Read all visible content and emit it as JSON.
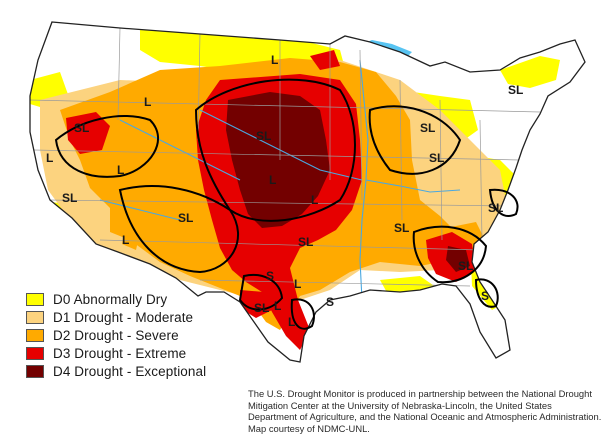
{
  "colors": {
    "D0": "#ffff00",
    "D1": "#fcd37f",
    "D2": "#ffaa00",
    "D3": "#e60000",
    "D4": "#730000",
    "water": "#58c4f2",
    "land": "#ffffff",
    "border": "#000000"
  },
  "legend": {
    "items": [
      {
        "label": "D0 Abnormally Dry",
        "color": "#ffff00"
      },
      {
        "label": "D1 Drought - Moderate",
        "color": "#fcd37f"
      },
      {
        "label": "D2 Drought - Severe",
        "color": "#ffaa00"
      },
      {
        "label": "D3 Drought - Extreme",
        "color": "#e60000"
      },
      {
        "label": "D4 Drought - Exceptional",
        "color": "#730000"
      }
    ]
  },
  "impact_labels": [
    "L",
    "SL",
    "SL",
    "L",
    "SL",
    "SL",
    "L",
    "SL",
    "L",
    "L",
    "SL",
    "L",
    "SL",
    "SL",
    "L",
    "SL",
    "SL",
    "SL",
    "S",
    "L",
    "L",
    "SL",
    "S",
    "S",
    "L"
  ],
  "credit": "The U.S. Drought Monitor is produced in partnership between the National Drought Mitigation Center at the University of Nebraska-Lincoln, the United States Department of Agriculture, and the National Oceanic and Atmospheric Administration. Map courtesy of NDMC-UNL."
}
